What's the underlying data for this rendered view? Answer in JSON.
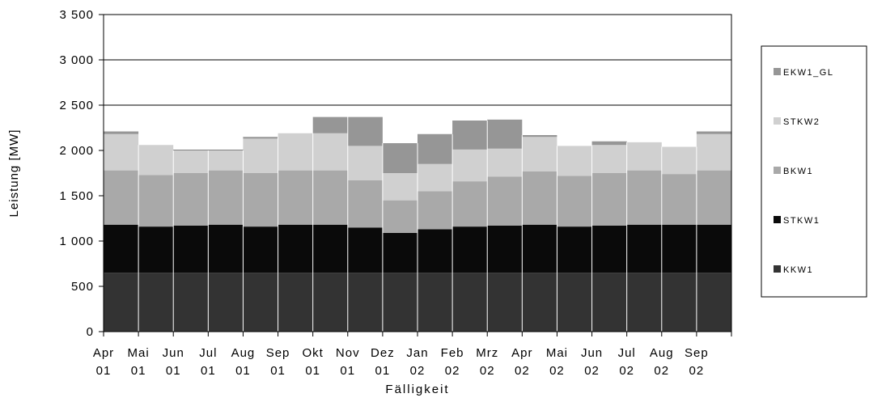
{
  "chart_data": {
    "type": "area",
    "stacked": true,
    "xlabel": "Fälligkeit",
    "ylabel": "Leistung [MW]",
    "ylim": [
      0,
      3500
    ],
    "yticks": [
      {
        "value": 0,
        "label": "0"
      },
      {
        "value": 500,
        "label": "500"
      },
      {
        "value": 1000,
        "label": "1 000"
      },
      {
        "value": 1500,
        "label": "1 500"
      },
      {
        "value": 2000,
        "label": "2 000"
      },
      {
        "value": 2500,
        "label": "2 500"
      },
      {
        "value": 3000,
        "label": "3 000"
      },
      {
        "value": 3500,
        "label": "3 500"
      }
    ],
    "grid": true,
    "legend_position": "right",
    "months": [
      {
        "mon": "Apr",
        "yr": "01"
      },
      {
        "mon": "Mai",
        "yr": "01"
      },
      {
        "mon": "Jun",
        "yr": "01"
      },
      {
        "mon": "Jul",
        "yr": "01"
      },
      {
        "mon": "Aug",
        "yr": "01"
      },
      {
        "mon": "Sep",
        "yr": "01"
      },
      {
        "mon": "Okt",
        "yr": "01"
      },
      {
        "mon": "Nov",
        "yr": "01"
      },
      {
        "mon": "Dez",
        "yr": "01"
      },
      {
        "mon": "Jan",
        "yr": "02"
      },
      {
        "mon": "Feb",
        "yr": "02"
      },
      {
        "mon": "Mrz",
        "yr": "02"
      },
      {
        "mon": "Apr",
        "yr": "02"
      },
      {
        "mon": "Mai",
        "yr": "02"
      },
      {
        "mon": "Jun",
        "yr": "02"
      },
      {
        "mon": "Jul",
        "yr": "02"
      },
      {
        "mon": "Aug",
        "yr": "02"
      },
      {
        "mon": "Sep",
        "yr": "02"
      }
    ],
    "series": [
      {
        "name": "KKW1",
        "color": "#333333",
        "values": [
          650,
          650,
          650,
          650,
          650,
          650,
          650,
          650,
          650,
          650,
          650,
          650,
          650,
          650,
          650,
          650,
          650,
          650
        ]
      },
      {
        "name": "STKW1",
        "color": "#0a0a0a",
        "values": [
          530,
          510,
          520,
          530,
          510,
          530,
          530,
          500,
          440,
          480,
          510,
          520,
          530,
          510,
          520,
          530,
          530,
          530
        ]
      },
      {
        "name": "BKW1",
        "color": "#a9a9a9",
        "values": [
          600,
          570,
          580,
          600,
          590,
          600,
          600,
          520,
          360,
          420,
          500,
          540,
          590,
          560,
          580,
          600,
          560,
          600
        ]
      },
      {
        "name": "STKW2",
        "color": "#d0d0d0",
        "values": [
          400,
          330,
          250,
          220,
          380,
          410,
          410,
          380,
          300,
          300,
          350,
          310,
          380,
          330,
          310,
          310,
          300,
          400
        ]
      },
      {
        "name": "EKW1_GL",
        "color": "#969696",
        "values": [
          30,
          0,
          0,
          0,
          20,
          0,
          180,
          320,
          330,
          330,
          320,
          320,
          20,
          0,
          40,
          0,
          0,
          30
        ]
      }
    ]
  }
}
